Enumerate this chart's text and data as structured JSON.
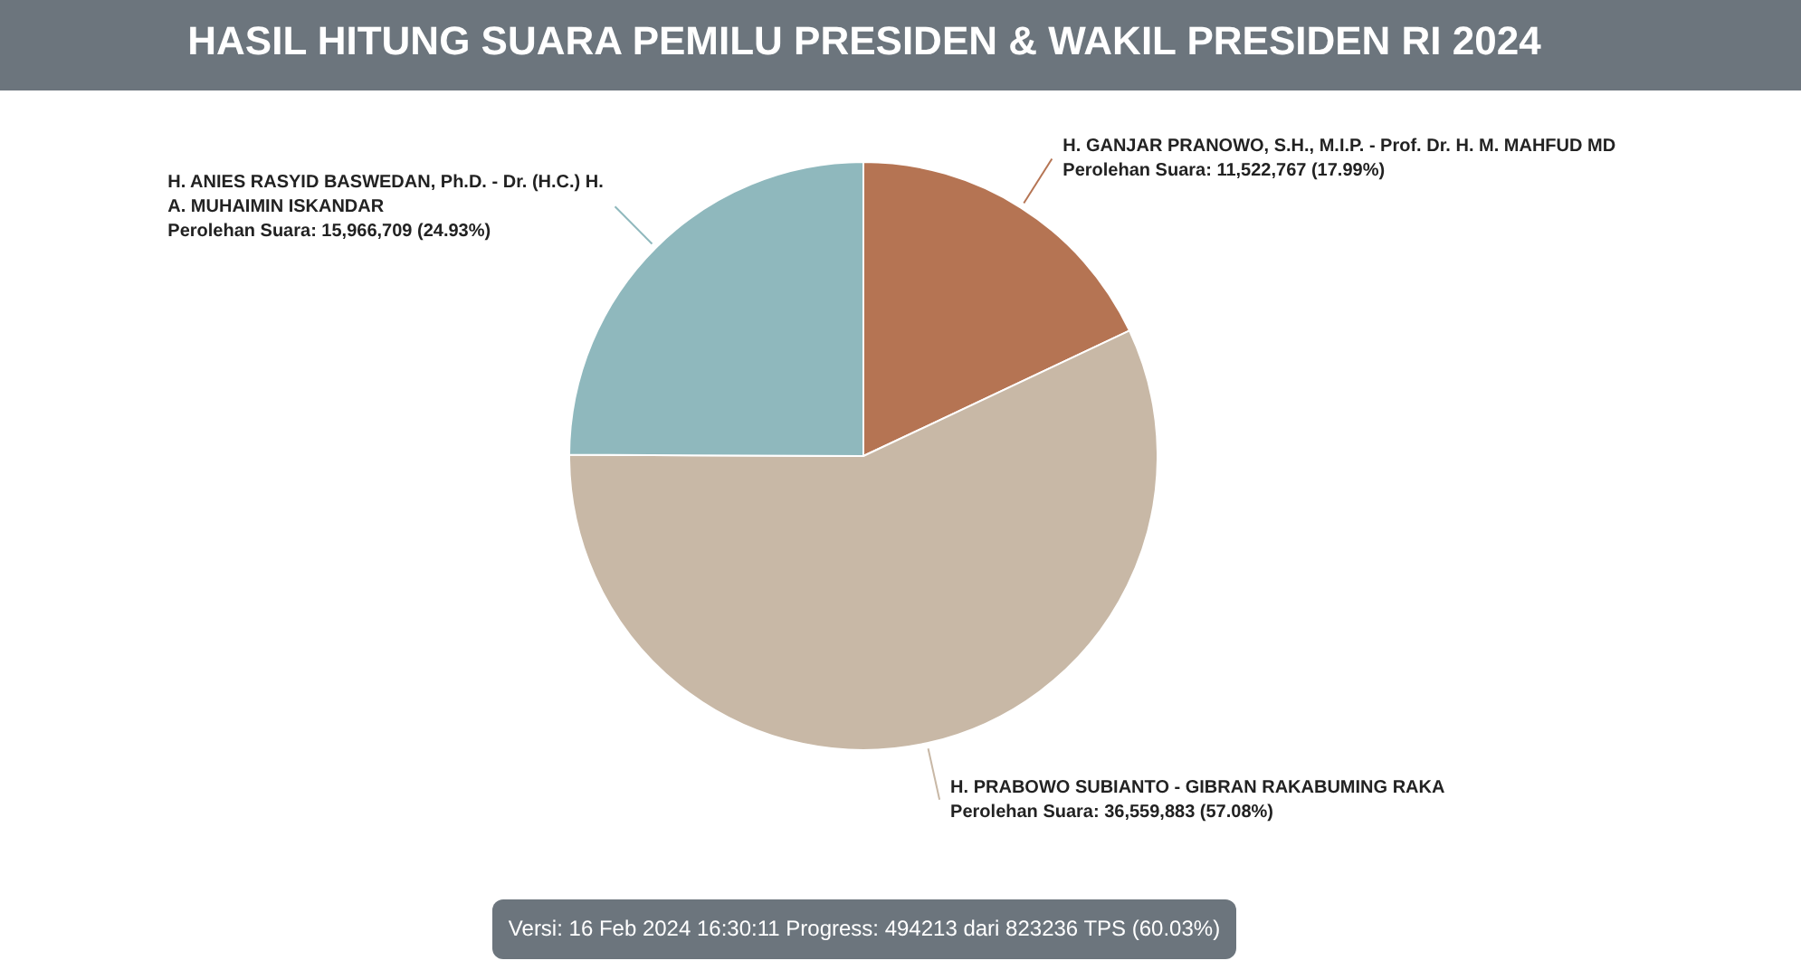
{
  "chart_data": {
    "type": "pie",
    "title": "HASIL HITUNG SUARA PEMILU PRESIDEN & WAKIL PRESIDEN RI 2024",
    "categories": [
      "H. GANJAR PRANOWO, S.H., M.I.P. - Prof. Dr. H. M. MAHFUD MD",
      "H. PRABOWO SUBIANTO - GIBRAN RAKABUMING RAKA",
      "H. ANIES RASYID BASWEDAN, Ph.D. - Dr. (H.C.) H. A. MUHAIMIN ISKANDAR"
    ],
    "values": [
      11522767,
      36559883,
      15966709
    ],
    "colors": [
      "#b57453",
      "#c8b8a6",
      "#8fb8bd"
    ],
    "value_labels": [
      "Perolehan Suara: 11,522,767 (17.99%)",
      "Perolehan Suara: 36,559,883 (57.08%)",
      "Perolehan Suara: 15,966,709 (24.93%)"
    ],
    "annotations": [
      "Versi: 16 Feb 2024 16:30:11 Progress: 494213 dari 823236 TPS (60.03%)"
    ]
  }
}
